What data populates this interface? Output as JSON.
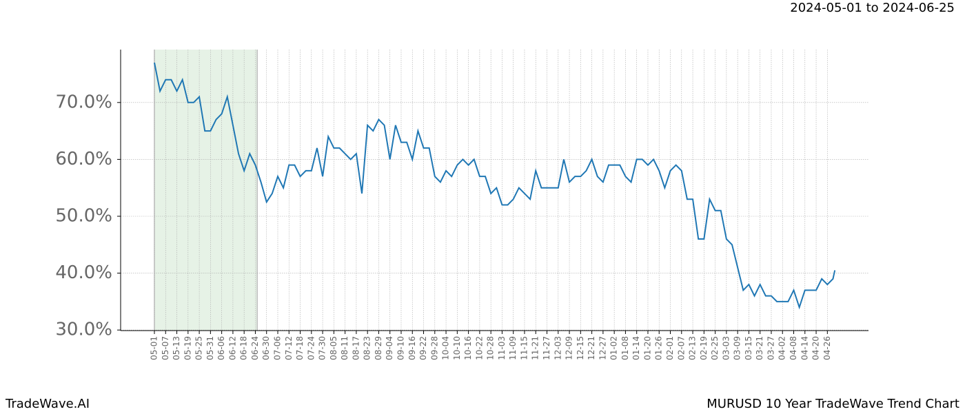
{
  "range_title": "2024-05-01 to 2024-06-25",
  "brand": "TradeWave.AI",
  "chart_name": "MURUSD 10 Year TradeWave Trend Chart",
  "chart_data": {
    "type": "line",
    "highlight": [
      "05-01",
      "06-25"
    ],
    "highlight_color": "#e6f2e6",
    "grid": true,
    "x": [
      "05-01",
      "05-04",
      "05-07",
      "05-10",
      "05-13",
      "05-16",
      "05-19",
      "05-22",
      "05-25",
      "05-28",
      "05-31",
      "06-03",
      "06-06",
      "06-09",
      "06-12",
      "06-15",
      "06-18",
      "06-21",
      "06-24",
      "06-27",
      "06-30",
      "07-03",
      "07-06",
      "07-09",
      "07-12",
      "07-15",
      "07-18",
      "07-21",
      "07-24",
      "07-27",
      "07-30",
      "08-02",
      "08-05",
      "08-08",
      "08-11",
      "08-14",
      "08-17",
      "08-20",
      "08-23",
      "08-26",
      "08-29",
      "09-01",
      "09-04",
      "09-07",
      "09-10",
      "09-13",
      "09-16",
      "09-19",
      "09-22",
      "09-25",
      "09-28",
      "10-01",
      "10-04",
      "10-07",
      "10-10",
      "10-13",
      "10-16",
      "10-19",
      "10-22",
      "10-25",
      "10-28",
      "10-31",
      "11-03",
      "11-06",
      "11-09",
      "11-12",
      "11-15",
      "11-18",
      "11-21",
      "11-24",
      "11-27",
      "11-30",
      "12-03",
      "12-06",
      "12-09",
      "12-12",
      "12-15",
      "12-18",
      "12-21",
      "12-24",
      "12-27",
      "12-30",
      "01-02",
      "01-05",
      "01-08",
      "01-11",
      "01-14",
      "01-17",
      "01-20",
      "01-23",
      "01-26",
      "01-29",
      "02-01",
      "02-04",
      "02-07",
      "02-10",
      "02-13",
      "02-16",
      "02-19",
      "02-22",
      "02-25",
      "02-28",
      "03-03",
      "03-06",
      "03-09",
      "03-12",
      "03-15",
      "03-18",
      "03-21",
      "03-24",
      "03-27",
      "03-30",
      "04-02",
      "04-05",
      "04-08",
      "04-11",
      "04-14",
      "04-17",
      "04-20",
      "04-23",
      "04-26",
      "04-29",
      "04-30"
    ],
    "series": [
      {
        "color": "#1f77b4",
        "values": [
          77,
          72,
          74,
          74,
          72,
          74,
          70,
          70,
          71,
          65,
          65,
          67,
          68,
          71,
          66,
          61,
          58,
          61,
          59,
          56,
          52.5,
          54,
          57,
          55,
          59,
          59,
          57,
          58,
          58,
          62,
          57,
          64,
          62,
          62,
          61,
          60,
          61,
          54,
          66,
          65,
          67,
          66,
          60,
          66,
          63,
          63,
          60,
          65,
          62,
          62,
          57,
          56,
          58,
          57,
          59,
          60,
          59,
          60,
          57,
          57,
          54,
          55,
          52,
          52,
          53,
          55,
          54,
          53,
          58,
          55,
          55,
          55,
          55,
          60,
          56,
          57,
          57,
          58,
          60,
          57,
          56,
          59,
          59,
          59,
          57,
          56,
          60,
          60,
          59,
          60,
          58,
          55,
          58,
          59,
          58,
          53,
          53,
          46,
          46,
          53,
          51,
          51,
          46,
          45,
          41,
          37,
          38,
          36,
          38,
          36,
          36,
          35,
          35,
          35,
          37,
          34,
          37,
          37,
          37,
          39,
          38,
          39,
          40.5
        ]
      }
    ],
    "xticks": [
      "05-01",
      "05-07",
      "05-13",
      "05-19",
      "05-25",
      "05-31",
      "06-06",
      "06-12",
      "06-18",
      "06-24",
      "06-30",
      "07-06",
      "07-12",
      "07-18",
      "07-24",
      "07-30",
      "08-05",
      "08-11",
      "08-17",
      "08-23",
      "08-29",
      "09-04",
      "09-10",
      "09-16",
      "09-22",
      "09-28",
      "10-04",
      "10-10",
      "10-16",
      "10-22",
      "10-28",
      "11-03",
      "11-09",
      "11-15",
      "11-21",
      "11-27",
      "12-03",
      "12-09",
      "12-15",
      "12-21",
      "12-27",
      "01-02",
      "01-08",
      "01-14",
      "01-20",
      "01-26",
      "02-01",
      "02-07",
      "02-13",
      "02-19",
      "02-25",
      "03-03",
      "03-09",
      "03-15",
      "03-21",
      "03-27",
      "04-02",
      "04-08",
      "04-14",
      "04-20",
      "04-26"
    ],
    "ylim": [
      29.9,
      79.3
    ],
    "yticks": [
      {
        "value": 30,
        "label": "30.0%"
      },
      {
        "value": 40,
        "label": "40.0%"
      },
      {
        "value": 50,
        "label": "50.0%"
      },
      {
        "value": 60,
        "label": "60.0%"
      },
      {
        "value": 70,
        "label": "70.0%"
      }
    ]
  }
}
